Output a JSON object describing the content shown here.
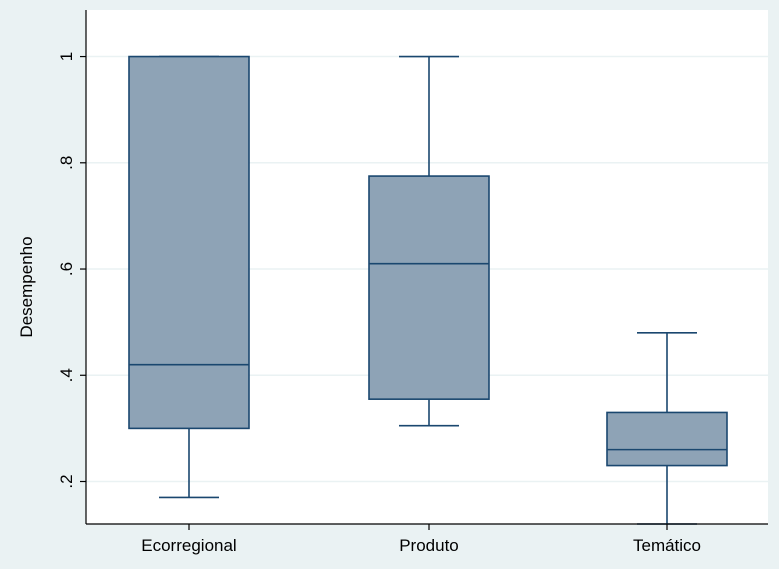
{
  "chart_data": {
    "type": "boxplot",
    "title": "",
    "xlabel": "",
    "ylabel": "Desempenho",
    "ylim": [
      0.12,
      1.05
    ],
    "yticks": [
      0.2,
      0.4,
      0.6,
      0.8,
      1.0
    ],
    "ytick_labels": [
      ".2",
      ".4",
      ".6",
      ".8",
      "1"
    ],
    "grid": true,
    "categories": [
      "Ecorregional",
      "Produto",
      "Temático"
    ],
    "boxes": [
      {
        "category": "Ecorregional",
        "whisker_low": 0.17,
        "q1": 0.3,
        "median": 0.42,
        "q3": 1.0,
        "whisker_high": 1.0
      },
      {
        "category": "Produto",
        "whisker_low": 0.305,
        "q1": 0.355,
        "median": 0.61,
        "q3": 0.775,
        "whisker_high": 1.0
      },
      {
        "category": "Temático",
        "whisker_low": 0.12,
        "q1": 0.23,
        "median": 0.26,
        "q3": 0.33,
        "whisker_high": 0.48
      }
    ],
    "colors": {
      "box_fill": "#8ea3b6",
      "box_stroke": "#1a476f",
      "plot_background": "#ffffff",
      "outer_background": "#eaf2f3",
      "grid": "#eaf2f3"
    }
  }
}
